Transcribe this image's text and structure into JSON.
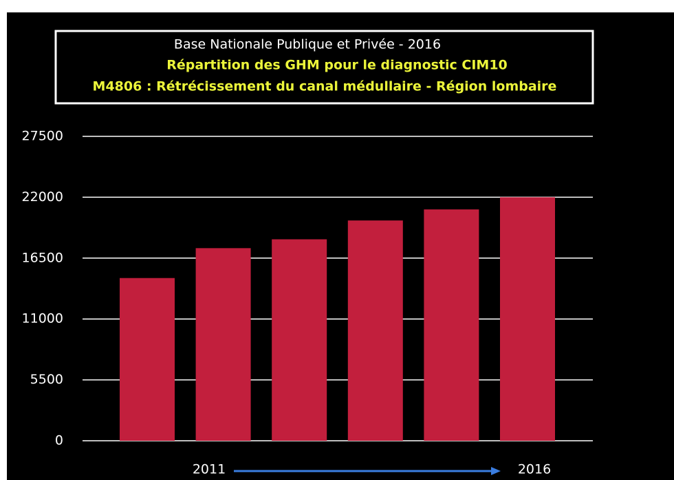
{
  "chart_data": {
    "type": "bar",
    "title": "Base Nationale Publique et Privée - 2016",
    "subtitle": [
      "Répartition des GHM pour le diagnostic CIM10",
      "M4806 : Rétrécissement du canal médullaire - Région lombaire"
    ],
    "categories": [
      "2011",
      null,
      null,
      null,
      null,
      "2016"
    ],
    "values": [
      14700,
      17400,
      18200,
      19900,
      20900,
      22000
    ],
    "color": "#c21f3d",
    "ylim": [
      0,
      27500
    ],
    "yticks": [
      0,
      5500,
      11000,
      16500,
      22000,
      27500
    ],
    "grid": true
  }
}
